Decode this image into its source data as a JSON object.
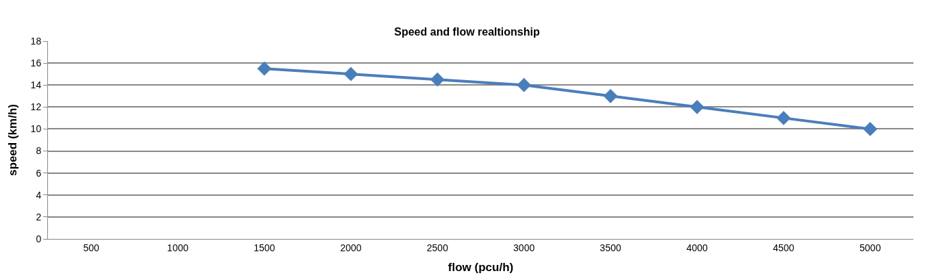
{
  "chart_data": {
    "type": "line",
    "title": "Speed and flow realtionship",
    "xlabel": "flow (pcu/h)",
    "ylabel": "speed (km/h)",
    "categories": [
      "500",
      "1000",
      "1500",
      "2000",
      "2500",
      "3000",
      "3500",
      "4000",
      "4500",
      "5000"
    ],
    "series": [
      {
        "color": "#4a7ebb",
        "values": [
          null,
          null,
          15.5,
          15,
          14.5,
          14,
          13,
          12,
          11,
          10
        ]
      }
    ],
    "ylim": [
      0,
      18
    ],
    "yticks": [
      0,
      2,
      4,
      6,
      8,
      10,
      12,
      14,
      16,
      18
    ],
    "grid": "y",
    "marker": "diamond",
    "line_style": "solid",
    "legend": false
  }
}
